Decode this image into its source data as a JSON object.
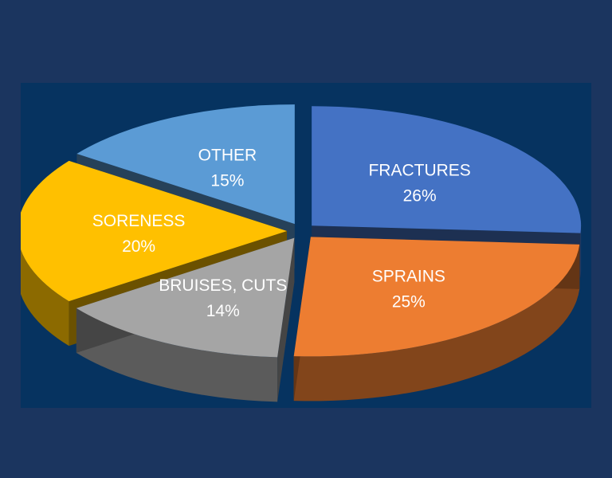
{
  "colors": {
    "page_background": "#1b355f",
    "chart_background": "#063360",
    "fractures": "#4472c4",
    "sprains": "#ed7d31",
    "bruises_cuts": "#a5a5a5",
    "soreness": "#ffc000",
    "other": "#5b9bd5"
  },
  "chart_data": {
    "type": "pie",
    "style": "3d-exploded",
    "title": "",
    "slices": [
      {
        "label": "FRACTURES",
        "value": 26,
        "value_label": "26%",
        "color": "#4472c4"
      },
      {
        "label": "SPRAINS",
        "value": 25,
        "value_label": "25%",
        "color": "#ed7d31"
      },
      {
        "label": "BRUISES, CUTS",
        "value": 14,
        "value_label": "14%",
        "color": "#a5a5a5"
      },
      {
        "label": "SORENESS",
        "value": 20,
        "value_label": "20%",
        "color": "#ffc000"
      },
      {
        "label": "OTHER",
        "value": 15,
        "value_label": "15%",
        "color": "#5b9bd5"
      }
    ]
  }
}
